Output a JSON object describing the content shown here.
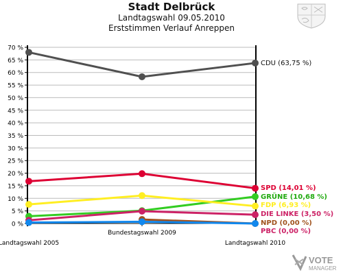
{
  "header": {
    "title": "Stadt Delbrück",
    "subtitle": "Landtagswahl 09.05.2010",
    "subtitle2": "Erststimmen Verlauf Anreppen"
  },
  "logo": {
    "line1": "VOTE",
    "line2": "MANAGER"
  },
  "colors": {
    "axis": "#000000",
    "grid": "#bbbbbb",
    "background": "#ffffff"
  },
  "chart_data": {
    "type": "line",
    "title": "Stadt Delbrück",
    "x": [
      "Landtagswahl 2005",
      "Bundestagswahl 2009",
      "Landtagswahl 2010"
    ],
    "ylim": [
      0,
      70
    ],
    "yticks": [
      "0 %",
      "5 %",
      "10 %",
      "15 %",
      "20 %",
      "25 %",
      "30 %",
      "35 %",
      "40 %",
      "45 %",
      "50 %",
      "55 %",
      "60 %",
      "65 %",
      "70 %"
    ],
    "grid": true,
    "series": [
      {
        "name": "CDU",
        "label": "CDU (63,75 %)",
        "color": "#505050",
        "text_color": "#111111",
        "values": [
          68.0,
          58.3,
          63.75
        ]
      },
      {
        "name": "SPD",
        "label": "SPD (14,01 %)",
        "color": "#dd0033",
        "text_color": "#dd0033",
        "values": [
          16.8,
          19.8,
          14.01
        ]
      },
      {
        "name": "GRÜNE",
        "label": "GRÜNE (10,68 %)",
        "color": "#33cc22",
        "text_color": "#22aa11",
        "values": [
          2.9,
          5.1,
          10.68
        ]
      },
      {
        "name": "FDP",
        "label": "FDP (6,93 %)",
        "color": "#ffee22",
        "text_color": "#ffee22",
        "values": [
          7.6,
          11.1,
          6.93
        ]
      },
      {
        "name": "DIE LINKE",
        "label": "DIE LINKE (3,50 %)",
        "color": "#cc2266",
        "text_color": "#cc2266",
        "values": [
          1.3,
          4.9,
          3.5
        ]
      },
      {
        "name": "NPD",
        "label": "NPD (0,00 %)",
        "color": "#a0521d",
        "text_color": "#a0521d",
        "values": [
          null,
          1.6,
          0.0
        ]
      },
      {
        "name": "PBC",
        "label": "PBC (0,00 %)",
        "color": "#1188ee",
        "text_color": "#cc2266",
        "values": [
          0.4,
          0.7,
          0.0
        ]
      }
    ]
  }
}
